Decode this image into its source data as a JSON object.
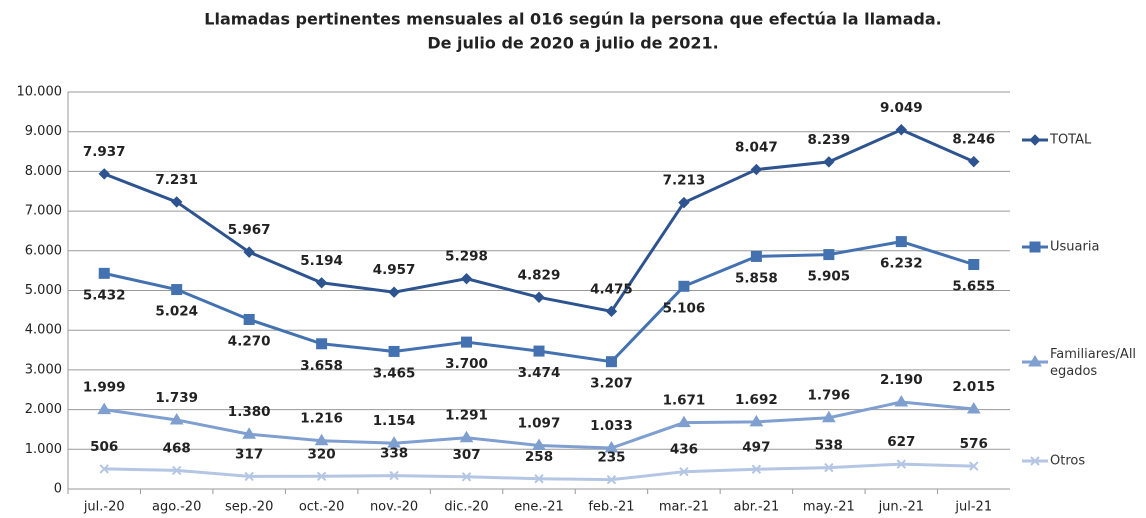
{
  "chart_data": {
    "type": "line",
    "title": "Llamadas pertinentes mensuales al 016 según la persona que efectúa la llamada.",
    "subtitle": "De julio de 2020 a julio de 2021.",
    "categories": [
      "jul.-20",
      "ago.-20",
      "sep.-20",
      "oct.-20",
      "nov.-20",
      "dic.-20",
      "ene.-21",
      "feb.-21",
      "mar.-21",
      "abr.-21",
      "may.-21",
      "jun.-21",
      "jul-21"
    ],
    "ylim": [
      0,
      10000
    ],
    "yticks": [
      0,
      {
        "value": 1000,
        "label": "1.000"
      },
      {
        "value": 2000,
        "label": "2.000"
      },
      {
        "value": 3000,
        "label": "3.000"
      },
      {
        "value": 4000,
        "label": "4.000"
      },
      {
        "value": 5000,
        "label": "5.000"
      },
      {
        "value": 6000,
        "label": "6.000"
      },
      {
        "value": 7000,
        "label": "7.000"
      },
      {
        "value": 8000,
        "label": "8.000"
      },
      {
        "value": 9000,
        "label": "9.000"
      },
      {
        "value": 10000,
        "label": "10.000"
      }
    ],
    "grid": true,
    "legend": "right",
    "series": [
      {
        "name": "TOTAL",
        "color": "#2e5490",
        "marker": "diamond",
        "label_position": "above",
        "values": [
          7937,
          7231,
          5967,
          5194,
          4957,
          5298,
          4829,
          4475,
          7213,
          8047,
          8239,
          9049,
          8246
        ],
        "value_labels": [
          "7.937",
          "7.231",
          "5.967",
          "5.194",
          "4.957",
          "5.298",
          "4.829",
          "4.475",
          "7.213",
          "8.047",
          "8.239",
          "9.049",
          "8.246"
        ]
      },
      {
        "name": "Usuaria",
        "color": "#4472b0",
        "marker": "square",
        "label_position": "below",
        "values": [
          5432,
          5024,
          4270,
          3658,
          3465,
          3700,
          3474,
          3207,
          5106,
          5858,
          5905,
          6232,
          5655
        ],
        "value_labels": [
          "5.432",
          "5.024",
          "4.270",
          "3.658",
          "3.465",
          "3.700",
          "3.474",
          "3.207",
          "5.106",
          "5.858",
          "5.905",
          "6.232",
          "5.655"
        ]
      },
      {
        "name": "Familiares/Allegados",
        "color": "#7f9fd0",
        "marker": "triangle",
        "label_position": "above",
        "values": [
          1999,
          1739,
          1380,
          1216,
          1154,
          1291,
          1097,
          1033,
          1671,
          1692,
          1796,
          2190,
          2015
        ],
        "value_labels": [
          "1.999",
          "1.739",
          "1.380",
          "1.216",
          "1.154",
          "1.291",
          "1.097",
          "1.033",
          "1.671",
          "1.692",
          "1.796",
          "2.190",
          "2.015"
        ]
      },
      {
        "name": "Otros",
        "color": "#b4c6e4",
        "marker": "x",
        "label_position": "above",
        "values": [
          506,
          468,
          317,
          320,
          338,
          307,
          258,
          235,
          436,
          497,
          538,
          627,
          576
        ]
      }
    ]
  }
}
